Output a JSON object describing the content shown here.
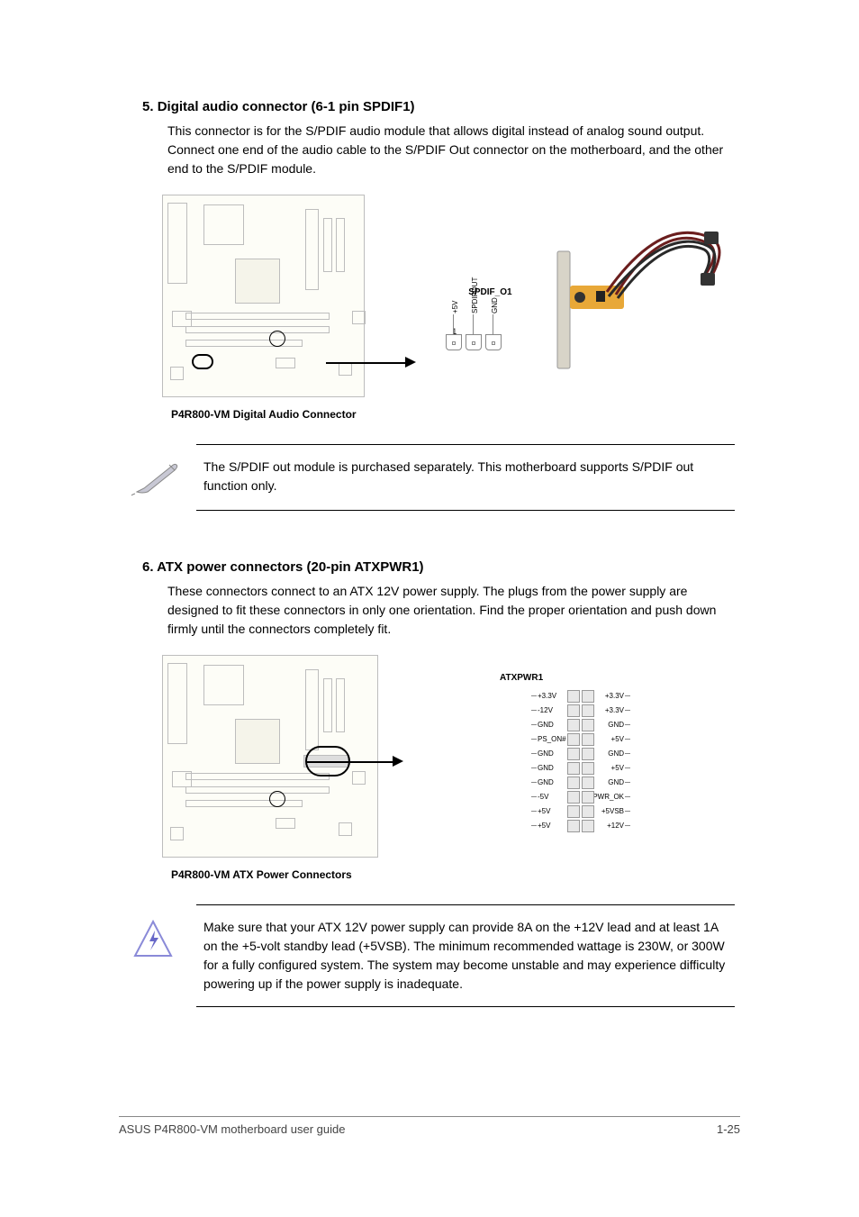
{
  "section5": {
    "number": "5.",
    "title": "Digital audio connector (6-1 pin SPDIF1)",
    "body": "This connector is for the S/PDIF audio module that allows digital instead of analog sound output. Connect one end of the audio cable to the S/PDIF Out connector on the motherboard, and the other end to the S/PDIF module.",
    "caption": "P4R800-VM Digital Audio Connector",
    "connector_label": "SPDIF_O1",
    "pin_num": "1",
    "pins": [
      "+5V",
      "SPDIFOUT",
      "GND"
    ],
    "note": "The S/PDIF out module is purchased separately. This motherboard supports S/PDIF out function only."
  },
  "section6": {
    "number": "6.",
    "title": "ATX power connectors (20-pin ATXPWR1)",
    "body": "These connectors connect to an ATX 12V power supply. The plugs from the power supply are designed to fit these connectors in only one orientation. Find the proper orientation and push down firmly until the connectors completely fit.",
    "caption": "P4R800-VM ATX Power Connectors",
    "connector_label": "ATXPWR1",
    "pins_left": [
      "+3.3V",
      "+3.3V",
      "GND",
      "+5V",
      "GND",
      "+5V",
      "GND",
      "PWR_OK",
      "+5VSB",
      "+12V"
    ],
    "pins_right": [
      "+3.3V",
      "-12V",
      "GND",
      "PS_ON#",
      "GND",
      "GND",
      "GND",
      "-5V",
      "+5V",
      "+5V"
    ],
    "note": "Make sure that your ATX 12V power supply can provide 8A on the +12V lead and at least 1A on the +5-volt standby lead (+5VSB). The minimum recommended wattage is 230W, or 300W for a fully configured system. The system may become unstable and may experience difficulty powering up if the power supply is inadequate."
  },
  "footer": {
    "left": "ASUS P4R800-VM motherboard user guide",
    "right": "1-25"
  },
  "colors": {
    "text": "#000000",
    "border": "#bdbdbd",
    "mobo_bg": "#fdfdf7",
    "footer_text": "#444444",
    "divider": "#888888"
  }
}
